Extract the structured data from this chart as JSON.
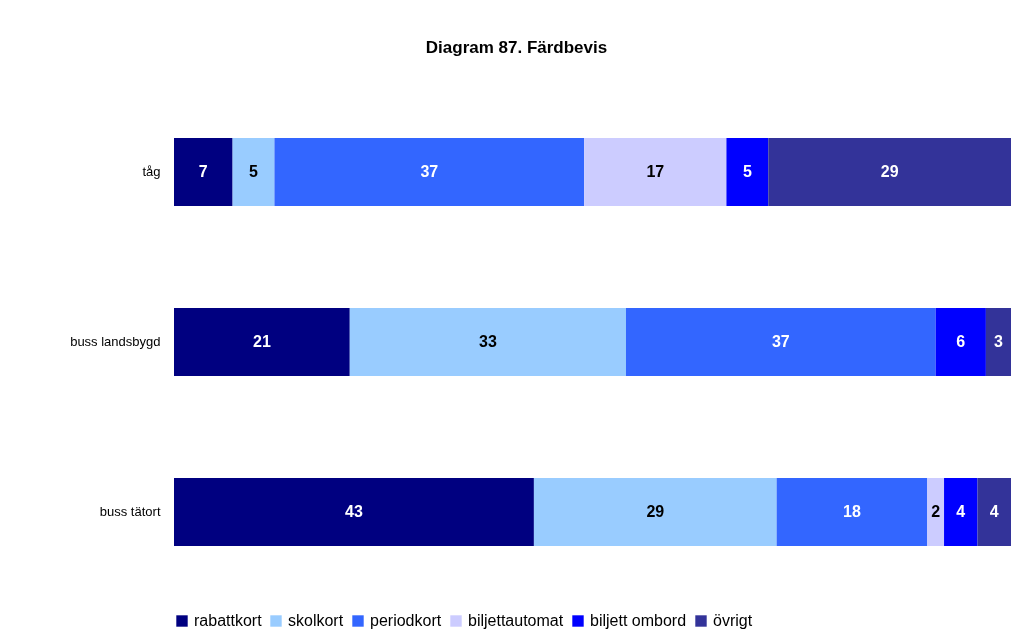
{
  "chart_data": {
    "type": "bar",
    "title": "Diagram 87. Färdbevis",
    "orientation": "horizontal",
    "stacked": true,
    "data_labels": true,
    "legend": "bottom",
    "grid": false,
    "categories": [
      "tåg",
      "buss landsbygd",
      "buss tätort"
    ],
    "series": [
      {
        "name": "rabattkort",
        "color": "#000080",
        "values": [
          7,
          21,
          43
        ]
      },
      {
        "name": "skolkort",
        "color": "#99ccff",
        "values": [
          5,
          33,
          29
        ]
      },
      {
        "name": "periodkort",
        "color": "#3366ff",
        "values": [
          37,
          37,
          18
        ]
      },
      {
        "name": "biljettautomat",
        "color": "#ccccff",
        "values": [
          17,
          null,
          2
        ]
      },
      {
        "name": "biljett ombord",
        "color": "#0000ff",
        "values": [
          5,
          6,
          4
        ]
      },
      {
        "name": "övrigt",
        "color": "#333399",
        "values": [
          29,
          3,
          4
        ]
      }
    ]
  }
}
